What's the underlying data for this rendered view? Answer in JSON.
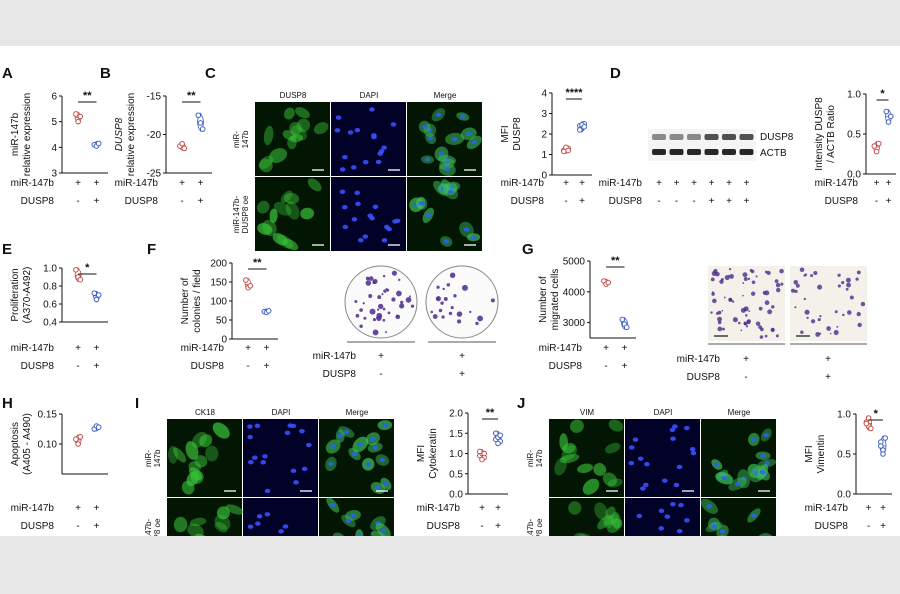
{
  "panels": {
    "A": "A",
    "B": "B",
    "C": "C",
    "D": "D",
    "E": "E",
    "F": "F",
    "G": "G",
    "H": "H",
    "I": "I",
    "J": "J"
  },
  "conditions": {
    "mir": "miR-147b",
    "dusp": "DUSP8",
    "plus": "+",
    "minus": "-"
  },
  "stain_headers": {
    "dusp8": "DUSP8",
    "dapi": "DAPI",
    "merge": "Merge",
    "ck18": "CK18",
    "vim": "VIM"
  },
  "row_labels": {
    "ctrl_1": "miR-",
    "ctrl_2": "147b",
    "oe_1": "miR-147b-",
    "oe_2": "DUSP8 oe"
  },
  "blot_labels": {
    "dusp8": "DUSP8",
    "actb": "ACTB"
  },
  "blot_conditions": {
    "mir": [
      "+",
      "+",
      "+",
      "+",
      "+",
      "+"
    ],
    "dusp": [
      "-",
      "-",
      "-",
      "+",
      "+",
      "+"
    ]
  },
  "colony_conditions": {
    "mir": [
      "+",
      "+"
    ],
    "dusp": [
      "-",
      "+"
    ]
  },
  "migration_conditions": {
    "mir": [
      "+",
      "+"
    ],
    "dusp": [
      "-",
      "+"
    ]
  },
  "colors": {
    "ctrl": "#c0504d",
    "oe": "#4060c0",
    "green_stain": "#2e9a2e",
    "blue_stain": "#1a1acc",
    "crystal": "#4b2c8c"
  },
  "chart_data": [
    {
      "id": "A",
      "type": "scatter",
      "ylabel": [
        "miR-147b",
        "relative expression"
      ],
      "yticks": [
        "3",
        "4",
        "5",
        "6"
      ],
      "ylim": [
        3,
        6
      ],
      "significance": "**",
      "series": [
        {
          "condition": "ctrl",
          "values": [
            5.3,
            5.0,
            5.2
          ]
        },
        {
          "condition": "oe",
          "values": [
            4.1,
            4.05,
            4.15
          ]
        }
      ]
    },
    {
      "id": "B",
      "type": "scatter",
      "ylabel": [
        "DUSP8",
        "relative expression"
      ],
      "yticks": [
        "-25",
        "-20",
        "-15"
      ],
      "ylim": [
        -25,
        -15
      ],
      "significance": "**",
      "series": [
        {
          "condition": "ctrl",
          "values": [
            -21.5,
            -21.2,
            -21.8
          ]
        },
        {
          "condition": "oe",
          "values": [
            -17.5,
            -18.5,
            -19.3
          ]
        }
      ]
    },
    {
      "id": "C",
      "type": "scatter",
      "ylabel": [
        "MFI",
        "DUSP8"
      ],
      "yticks": [
        "0",
        "1",
        "2",
        "3",
        "4"
      ],
      "ylim": [
        0,
        4
      ],
      "significance": "****",
      "series": [
        {
          "condition": "ctrl",
          "values": [
            1.2,
            1.25,
            1.3,
            1.15,
            1.35,
            1.2
          ]
        },
        {
          "condition": "oe",
          "values": [
            2.4,
            2.3,
            2.5,
            2.2,
            2.45,
            2.35
          ]
        }
      ]
    },
    {
      "id": "D",
      "type": "scatter",
      "ylabel": [
        "Intensity DUSP8",
        "/ ACTB Ratio"
      ],
      "yticks": [
        "0.0",
        "0.5",
        "1.0"
      ],
      "ylim": [
        0,
        1
      ],
      "significance": "*",
      "series": [
        {
          "condition": "ctrl",
          "values": [
            0.35,
            0.28,
            0.38
          ]
        },
        {
          "condition": "oe",
          "values": [
            0.78,
            0.65,
            0.72
          ]
        }
      ]
    },
    {
      "id": "E",
      "type": "scatter",
      "ylabel": [
        "Proliferation",
        "(A370-A492)"
      ],
      "yticks": [
        "0.4",
        "0.6",
        "0.8",
        "1.0"
      ],
      "ylim": [
        0.4,
        1.0
      ],
      "significance": "*",
      "series": [
        {
          "condition": "ctrl",
          "values": [
            0.98,
            0.9,
            0.87
          ]
        },
        {
          "condition": "oe",
          "values": [
            0.72,
            0.65,
            0.7
          ]
        }
      ]
    },
    {
      "id": "F",
      "type": "scatter",
      "ylabel": [
        "Number of",
        "colonies / field"
      ],
      "yticks": [
        "0",
        "50",
        "100",
        "150",
        "200"
      ],
      "ylim": [
        0,
        200
      ],
      "significance": "**",
      "series": [
        {
          "condition": "ctrl",
          "values": [
            155,
            135,
            140
          ]
        },
        {
          "condition": "oe",
          "values": [
            72,
            70,
            74
          ]
        }
      ]
    },
    {
      "id": "G",
      "type": "scatter",
      "ylabel": [
        "Number of",
        "migrated cells"
      ],
      "yticks": [
        "3000",
        "4000",
        "5000"
      ],
      "ylim": [
        2500,
        5000
      ],
      "significance": "**",
      "series": [
        {
          "condition": "ctrl",
          "values": [
            4350,
            4250,
            4300
          ]
        },
        {
          "condition": "oe",
          "values": [
            3100,
            2950,
            2850
          ]
        }
      ]
    },
    {
      "id": "H",
      "type": "scatter",
      "ylabel": [
        "Apoptosis",
        "(A405 - A490)"
      ],
      "yticks": [
        "0.10",
        "0.15"
      ],
      "ylim": [
        0.05,
        0.15
      ],
      "significance": "",
      "series": [
        {
          "condition": "ctrl",
          "values": [
            0.108,
            0.1,
            0.112
          ]
        },
        {
          "condition": "oe",
          "values": [
            0.125,
            0.13,
            0.128
          ]
        }
      ]
    },
    {
      "id": "I",
      "type": "scatter",
      "ylabel": [
        "MFI",
        "Cytokeratin"
      ],
      "yticks": [
        "0.0",
        "0.5",
        "1.0",
        "1.5",
        "2.0"
      ],
      "ylim": [
        0,
        2
      ],
      "significance": "**",
      "series": [
        {
          "condition": "ctrl",
          "values": [
            0.95,
            1.0,
            0.9,
            1.05,
            0.85,
            1.0
          ]
        },
        {
          "condition": "oe",
          "values": [
            1.35,
            1.4,
            1.3,
            1.5,
            1.25,
            1.45
          ]
        }
      ]
    },
    {
      "id": "J",
      "type": "scatter",
      "ylabel": [
        "MFI",
        "Vimentin"
      ],
      "yticks": [
        "0.0",
        "0.5",
        "1.0"
      ],
      "ylim": [
        0,
        1
      ],
      "significance": "*",
      "series": [
        {
          "condition": "ctrl",
          "values": [
            0.9,
            0.85,
            0.82,
            0.88,
            0.95
          ]
        },
        {
          "condition": "oe",
          "values": [
            0.65,
            0.55,
            0.7,
            0.6,
            0.5
          ]
        }
      ]
    }
  ]
}
